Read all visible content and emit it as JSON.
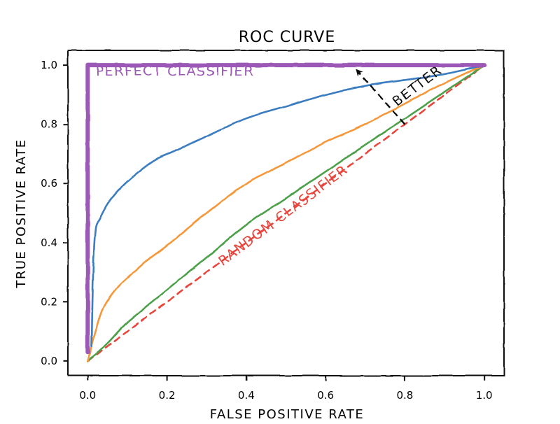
{
  "chart_data": {
    "type": "line",
    "title": "ROC CURVE",
    "xlabel": "FALSE POSITIVE RATE",
    "ylabel": "TRUE POSITIVE RATE",
    "xlim": [
      -0.05,
      1.05
    ],
    "ylim": [
      -0.05,
      1.05
    ],
    "xticks": [
      0.0,
      0.2,
      0.4,
      0.6,
      0.8,
      1.0
    ],
    "yticks": [
      0.0,
      0.2,
      0.4,
      0.6,
      0.8,
      1.0
    ],
    "xtick_labels": [
      "0.0",
      "0.2",
      "0.4",
      "0.6",
      "0.8",
      "1.0"
    ],
    "ytick_labels": [
      "0.0",
      "0.2",
      "0.4",
      "0.6",
      "0.8",
      "1.0"
    ],
    "grid": false,
    "series": [
      {
        "name": "perfect",
        "color": "#9b59b6",
        "dash": "solid",
        "x": [
          0.0,
          0.0,
          1.0
        ],
        "y": [
          0.03,
          1.0,
          1.0
        ]
      },
      {
        "name": "blue",
        "color": "#3b7dc0",
        "dash": "solid",
        "x": [
          0.01,
          0.012,
          0.015,
          0.02,
          0.03,
          0.05,
          0.08,
          0.12,
          0.17,
          0.22,
          0.3,
          0.4,
          0.5,
          0.6,
          0.7,
          0.8,
          0.9,
          1.0
        ],
        "y": [
          0.05,
          0.2,
          0.35,
          0.45,
          0.48,
          0.53,
          0.58,
          0.63,
          0.68,
          0.71,
          0.76,
          0.82,
          0.86,
          0.9,
          0.93,
          0.95,
          0.97,
          1.0
        ]
      },
      {
        "name": "orange",
        "color": "#f5983a",
        "dash": "solid",
        "x": [
          0.0,
          0.02,
          0.04,
          0.07,
          0.1,
          0.15,
          0.2,
          0.3,
          0.4,
          0.5,
          0.6,
          0.7,
          0.8,
          0.9,
          1.0
        ],
        "y": [
          0.0,
          0.1,
          0.18,
          0.24,
          0.28,
          0.34,
          0.39,
          0.5,
          0.6,
          0.67,
          0.74,
          0.8,
          0.87,
          0.94,
          1.0
        ]
      },
      {
        "name": "green",
        "color": "#4ca04a",
        "dash": "solid",
        "x": [
          0.0,
          0.05,
          0.1,
          0.2,
          0.3,
          0.4,
          0.5,
          0.6,
          0.7,
          0.8,
          0.9,
          1.0
        ],
        "y": [
          0.0,
          0.06,
          0.13,
          0.24,
          0.35,
          0.46,
          0.55,
          0.64,
          0.73,
          0.82,
          0.91,
          1.0
        ]
      },
      {
        "name": "random",
        "color": "#e8453c",
        "dash": "dashed",
        "x": [
          0.0,
          1.0
        ],
        "y": [
          0.0,
          1.0
        ]
      }
    ],
    "annotations": [
      {
        "text": "PERFECT CLASSIFIER",
        "x": 0.02,
        "y": 0.965,
        "color": "#9b59b6",
        "rotation": 0
      },
      {
        "text": "RANDOM CLASSIFIER",
        "x": 0.34,
        "y": 0.32,
        "color": "#e8453c",
        "rotation": -37
      },
      {
        "text": "BETTER",
        "x": 0.78,
        "y": 0.86,
        "color": "#111111",
        "rotation": -37
      }
    ],
    "arrow": {
      "from": [
        0.8,
        0.8
      ],
      "to": [
        0.68,
        0.98
      ],
      "color": "#111111"
    }
  }
}
